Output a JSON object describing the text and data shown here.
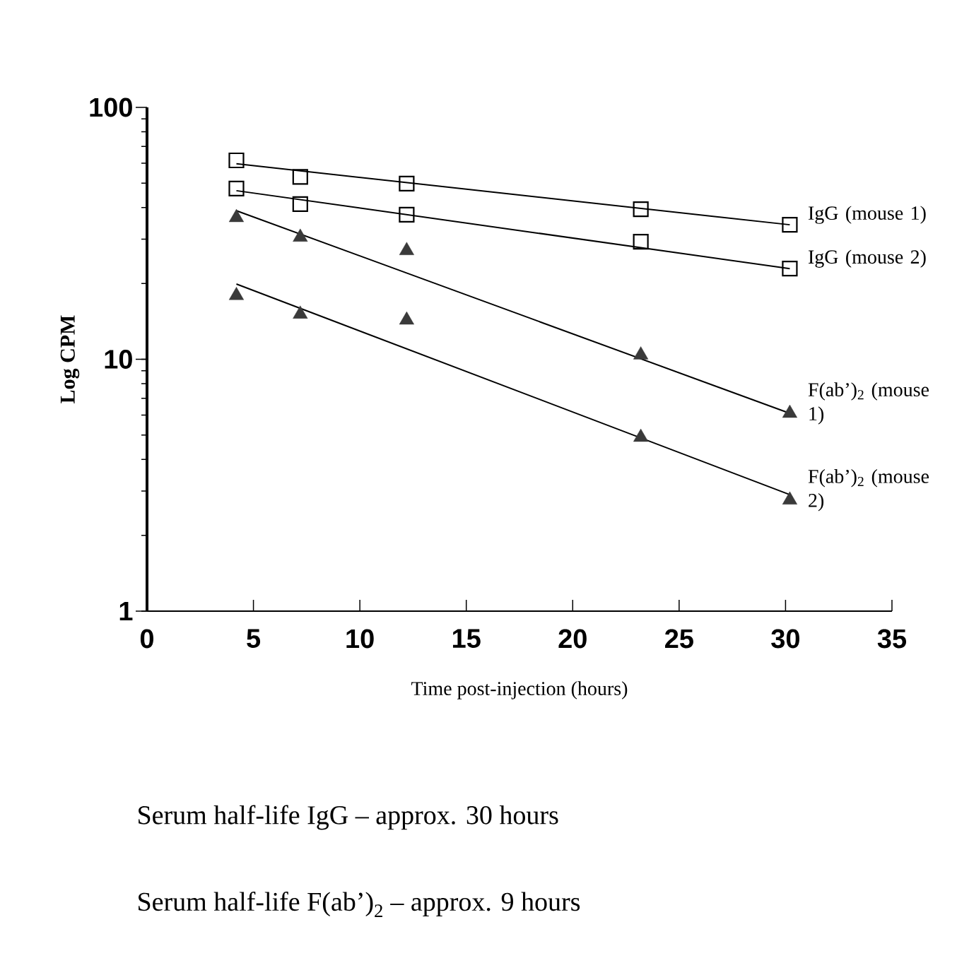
{
  "chart_data": {
    "type": "scatter",
    "xlabel": "Time post-injection (hours)",
    "ylabel": "Log CPM",
    "log": "y",
    "xlim": [
      0,
      35
    ],
    "ylim": [
      1,
      100
    ],
    "xticks": [
      0,
      5,
      10,
      15,
      20,
      25,
      30,
      35
    ],
    "yticks": [
      1,
      10,
      100
    ],
    "grid": false,
    "series": [
      {
        "name": "IgG (mouse 1)",
        "marker": "square",
        "color": "#000000",
        "x": [
          4.2,
          7.2,
          12.2,
          23.2,
          30.2
        ],
        "values": [
          61.6,
          53,
          49.8,
          39.4,
          34.2
        ]
      },
      {
        "name": "IgG (mouse 2)",
        "marker": "square",
        "color": "#000000",
        "x": [
          4.2,
          7.2,
          12.2,
          23.2,
          30.2
        ],
        "values": [
          47.6,
          41.3,
          37.5,
          29.3,
          22.9
        ]
      },
      {
        "name": "F(ab’)$_{2}$ (mouse 1)",
        "marker": "triangle",
        "color": "#3a3a3a",
        "x": [
          4.2,
          7.2,
          12.2,
          23.2,
          30.2
        ],
        "values": [
          36.5,
          30.5,
          27,
          10.4,
          6.1
        ]
      },
      {
        "name": "F(ab’)$_{2}$ (mouse 2)",
        "marker": "triangle",
        "color": "#3a3a3a",
        "x": [
          4.2,
          7.2,
          12.2,
          23.2,
          30.2
        ],
        "values": [
          17.9,
          15.1,
          14.3,
          4.9,
          2.76
        ]
      },
      {
        "type": "line",
        "marker": "none",
        "color": "#000000",
        "x": [
          4.2,
          30.2
        ],
        "values": [
          59.7,
          34.2
        ]
      },
      {
        "type": "line",
        "marker": "none",
        "color": "#000000",
        "x": [
          4.2,
          30.2
        ],
        "values": [
          46.7,
          22.9
        ]
      },
      {
        "type": "line",
        "marker": "none",
        "color": "#000000",
        "x": [
          4.2,
          30.2
        ],
        "values": [
          38.9,
          6.1
        ]
      },
      {
        "type": "line",
        "marker": "none",
        "color": "#000000",
        "x": [
          4.2,
          30.2
        ],
        "values": [
          19.9,
          2.9
        ]
      }
    ],
    "annotations": [
      "Serum half-life IgG – approx. 30 hours",
      "Serum half-life F(ab’)$_{2}$ – approx. 9 hours"
    ]
  }
}
